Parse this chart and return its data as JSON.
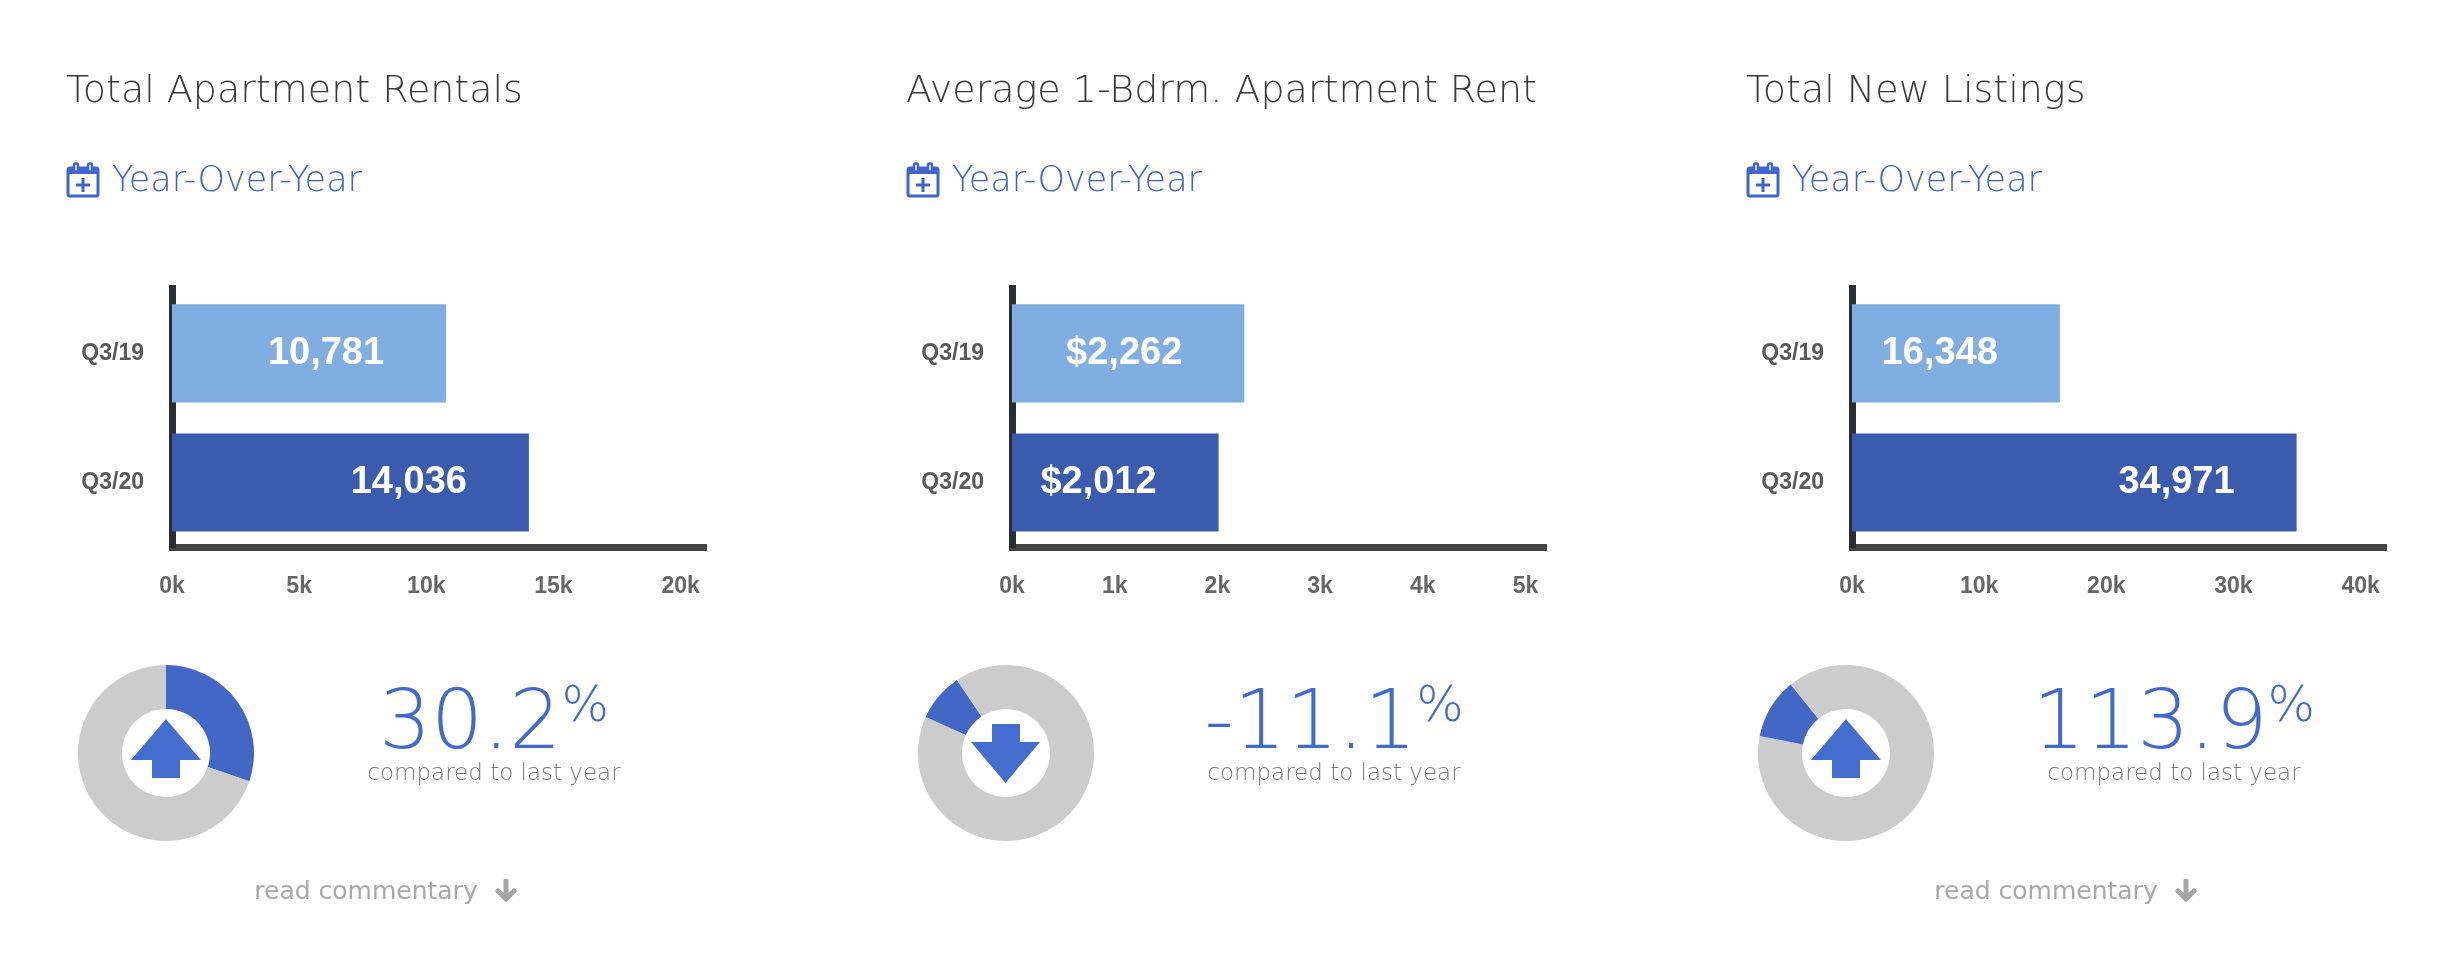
{
  "chart_data": [
    {
      "type": "bar",
      "orientation": "horizontal",
      "title": "Total Apartment Rentals",
      "subtitle": "Year-Over-Year",
      "categories": [
        "Q3/19",
        "Q3/20"
      ],
      "values": [
        10781,
        14036
      ],
      "colors": [
        "#80aee1",
        "#3b5cae"
      ],
      "value_labels": [
        "10,781",
        "14,036"
      ],
      "xlim": [
        0,
        21000
      ],
      "xticks": [
        {
          "value": 0,
          "label": "0k"
        },
        {
          "value": 5000,
          "label": "5k"
        },
        {
          "value": 10000,
          "label": "10k"
        },
        {
          "value": 15000,
          "label": "15k"
        },
        {
          "value": 20000,
          "label": "20k"
        }
      ]
    },
    {
      "type": "donut",
      "title": "30.2$^{%}$",
      "subtitle": "compared to last year",
      "categories": [
        null,
        null
      ],
      "values": [
        30.2,
        69.8
      ],
      "colors": [
        "#4267c5",
        "#cccccc"
      ],
      "annotations": [
        "read commentary"
      ]
    },
    {
      "type": "bar",
      "orientation": "horizontal",
      "title": "Average 1-Bdrm. Apartment Rent",
      "subtitle": "Year-Over-Year",
      "categories": [
        "Q3/19",
        "Q3/20"
      ],
      "values": [
        2262,
        2012
      ],
      "colors": [
        "#80aee1",
        "#3b5cae"
      ],
      "value_labels": [
        "$2,262",
        "$2,012"
      ],
      "xlim": [
        0,
        5200
      ],
      "xticks": [
        {
          "value": 0,
          "label": "0k"
        },
        {
          "value": 1000,
          "label": "1k"
        },
        {
          "value": 2000,
          "label": "2k"
        },
        {
          "value": 3000,
          "label": "3k"
        },
        {
          "value": 4000,
          "label": "4k"
        },
        {
          "value": 5000,
          "label": "5k"
        }
      ]
    },
    {
      "type": "donut",
      "title": "-11.1$^{%}$",
      "subtitle": "compared to last year",
      "categories": [
        null,
        null,
        null
      ],
      "values": [
        81.7,
        8.9,
        9.4
      ],
      "colors": [
        "#cccccc",
        "#4267c5",
        "#cccccc"
      ]
    },
    {
      "type": "bar",
      "orientation": "horizontal",
      "title": "Total New Listings",
      "subtitle": "Year-Over-Year",
      "categories": [
        "Q3/19",
        "Q3/20"
      ],
      "values": [
        16348,
        34971
      ],
      "colors": [
        "#80aee1",
        "#3b5cae"
      ],
      "value_labels": [
        "16,348",
        "34,971"
      ],
      "xlim": [
        0,
        42000
      ],
      "xticks": [
        {
          "value": 0,
          "label": "0k"
        },
        {
          "value": 10000,
          "label": "10k"
        },
        {
          "value": 20000,
          "label": "20k"
        },
        {
          "value": 30000,
          "label": "30k"
        },
        {
          "value": 40000,
          "label": "40k"
        }
      ]
    },
    {
      "type": "donut",
      "title": "113.9$^{%}$",
      "subtitle": "compared to last year",
      "categories": [
        null,
        null,
        null
      ],
      "values": [
        78.1,
        11.1,
        10.8
      ],
      "colors": [
        "#cccccc",
        "#4267c5",
        "#cccccc"
      ],
      "annotations": [
        "read commentary"
      ]
    }
  ]
}
